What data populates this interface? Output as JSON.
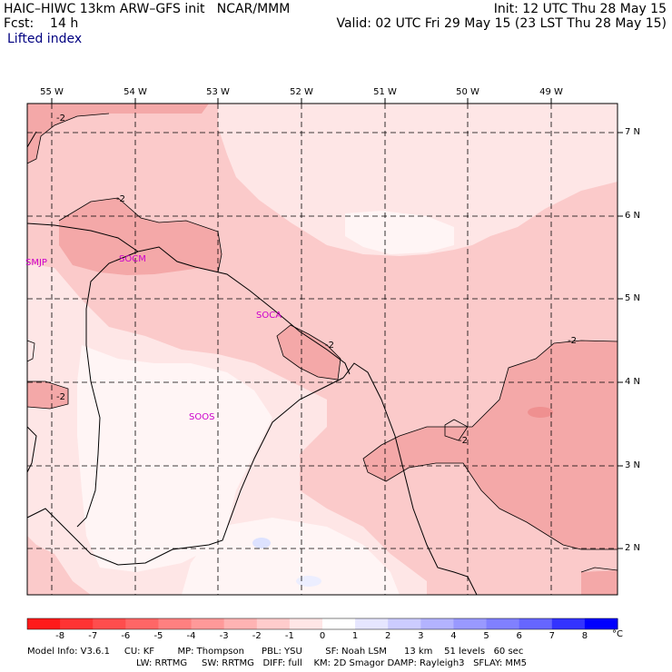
{
  "header": {
    "title_left": "HAIC–HIWC 13km ARW–GFS init   NCAR/MMM",
    "fcst": "Fcst:    14 h",
    "field": "Lifted index",
    "init": "Init: 12 UTC Thu 28 May 15",
    "valid": "Valid: 02 UTC Fri 29 May 15 (23 LST Thu 28 May 15)"
  },
  "map": {
    "lon_labels": [
      "55 W",
      "54 W",
      "53 W",
      "52 W",
      "51 W",
      "50 W",
      "49 W"
    ],
    "lat_labels": [
      "7 N",
      "6 N",
      "5 N",
      "4 N",
      "3 N",
      "2 N"
    ],
    "contour_labels": [
      "-2",
      "-2",
      "-2",
      "-2",
      "-2",
      "-2"
    ],
    "stations": [
      "SMJP",
      "SOCM",
      "SOCA",
      "SOOS"
    ],
    "colors": {
      "li_m3": "#f4a8a8",
      "li_m2": "#fbcaca",
      "li_m1": "#fee6e6",
      "li_0": "#fff5f5",
      "li_p1": "#dde2ff",
      "station": "#cc00cc"
    }
  },
  "colorbar": {
    "ticks": [
      "-8",
      "-7",
      "-6",
      "-5",
      "-4",
      "-3",
      "-2",
      "-1",
      "0",
      "1",
      "2",
      "3",
      "4",
      "5",
      "6",
      "7",
      "8"
    ],
    "unit": "°C",
    "colors": [
      "#ff1a1a",
      "#ff3333",
      "#ff4d4d",
      "#ff6666",
      "#ff8080",
      "#ff9999",
      "#ffb3b3",
      "#ffcccc",
      "#ffe6e6",
      "#ffffff",
      "#e6e6ff",
      "#ccccff",
      "#b3b3ff",
      "#9999ff",
      "#8080ff",
      "#6666ff",
      "#3333ff",
      "#0000ff"
    ]
  },
  "footer": {
    "line1": "Model Info: V3.6.1     CU: KF        MP: Thompson      PBL: YSU        SF: Noah LSM      13 km    51 levels   60 sec",
    "line2": "LW: RRTMG     SW: RRTMG   DIFF: full    KM: 2D Smagor DAMP: Rayleigh3   SFLAY: MM5"
  }
}
